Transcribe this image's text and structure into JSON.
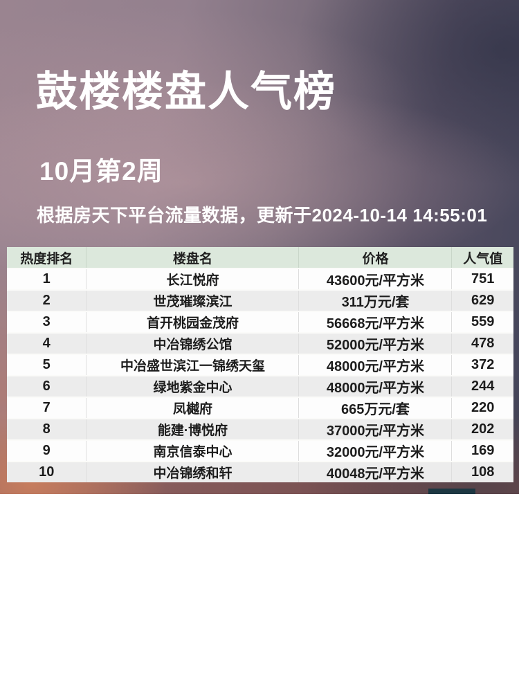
{
  "header": {
    "title": "鼓楼楼盘人气榜",
    "subtitle": "10月第2周",
    "source_note": "根据房天下平台流量数据，更新于2024-10-14 14:55:01"
  },
  "table": {
    "columns": [
      "热度排名",
      "楼盘名",
      "价格",
      "人气值"
    ],
    "rows": [
      {
        "rank": "1",
        "name": "长江悦府",
        "price": "43600元/平方米",
        "popularity": "751"
      },
      {
        "rank": "2",
        "name": "世茂璀璨滨江",
        "price": "311万元/套",
        "popularity": "629"
      },
      {
        "rank": "3",
        "name": "首开桃园金茂府",
        "price": "56668元/平方米",
        "popularity": "559"
      },
      {
        "rank": "4",
        "name": "中冶锦绣公馆",
        "price": "52000元/平方米",
        "popularity": "478"
      },
      {
        "rank": "5",
        "name": "中冶盛世滨江一锦绣天玺",
        "price": "48000元/平方米",
        "popularity": "372"
      },
      {
        "rank": "6",
        "name": "绿地紫金中心",
        "price": "48000元/平方米",
        "popularity": "244"
      },
      {
        "rank": "7",
        "name": "凤樾府",
        "price": "665万元/套",
        "popularity": "220"
      },
      {
        "rank": "8",
        "name": "能建·博悦府",
        "price": "37000元/平方米",
        "popularity": "202"
      },
      {
        "rank": "9",
        "name": "南京信泰中心",
        "price": "32000元/平方米",
        "popularity": "169"
      },
      {
        "rank": "10",
        "name": "中冶锦绣和轩",
        "price": "40048元/平方米",
        "popularity": "108"
      }
    ]
  },
  "colors": {
    "header_bg": "#dce8dc",
    "row_bg": "#fdfdfd",
    "row_alt_bg": "#ececec",
    "table_text": "#1d1d1d",
    "headline_text": "#ffffff"
  }
}
